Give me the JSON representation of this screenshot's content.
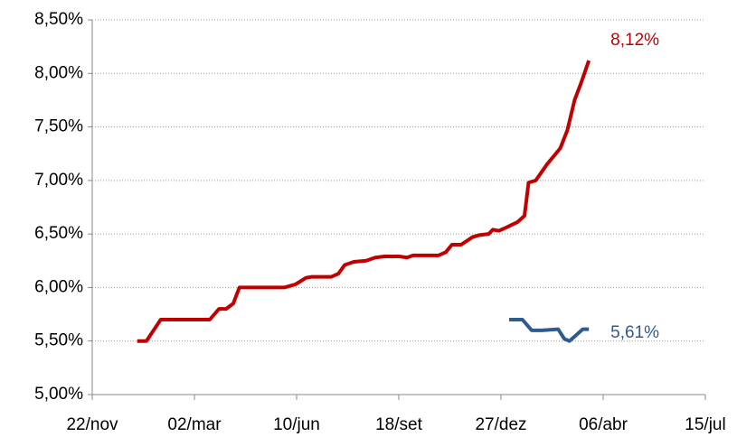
{
  "chart_data": {
    "type": "line",
    "xlim": [
      0,
      600
    ],
    "xticks": [
      {
        "value": 0,
        "label": "22/nov"
      },
      {
        "value": 100,
        "label": "02/mar"
      },
      {
        "value": 200,
        "label": "10/jun"
      },
      {
        "value": 300,
        "label": "18/set"
      },
      {
        "value": 400,
        "label": "27/dez"
      },
      {
        "value": 500,
        "label": "06/abr"
      },
      {
        "value": 600,
        "label": "15/jul"
      }
    ],
    "ylim": [
      5.0,
      8.5
    ],
    "yticks": [
      {
        "value": 5.0,
        "label": "5,00%"
      },
      {
        "value": 5.5,
        "label": "5,50%"
      },
      {
        "value": 6.0,
        "label": "6,00%"
      },
      {
        "value": 6.5,
        "label": "6,50%"
      },
      {
        "value": 7.0,
        "label": "7,00%"
      },
      {
        "value": 7.5,
        "label": "7,50%"
      },
      {
        "value": 8.0,
        "label": "8,00%"
      },
      {
        "value": 8.5,
        "label": "8,50%"
      }
    ],
    "grid": true,
    "series": [
      {
        "color": "#c00000",
        "x": [
          44,
          53,
          67,
          115,
          124,
          131,
          138,
          144,
          188,
          199,
          209,
          215,
          234,
          241,
          247,
          256,
          268,
          277,
          286,
          301,
          308,
          314,
          339,
          346,
          352,
          361,
          372,
          379,
          388,
          392,
          398,
          405,
          416,
          423,
          427,
          434,
          445,
          458,
          465,
          472,
          478,
          486
        ],
        "values": [
          5.5,
          5.5,
          5.7,
          5.7,
          5.8,
          5.8,
          5.85,
          6.0,
          6.0,
          6.03,
          6.09,
          6.1,
          6.1,
          6.13,
          6.21,
          6.24,
          6.25,
          6.28,
          6.29,
          6.29,
          6.28,
          6.3,
          6.3,
          6.33,
          6.4,
          6.4,
          6.47,
          6.49,
          6.5,
          6.54,
          6.53,
          6.56,
          6.61,
          6.67,
          6.98,
          7.0,
          7.15,
          7.3,
          7.47,
          7.75,
          7.9,
          8.12
        ],
        "value_labels": [
          null,
          null,
          null,
          null,
          null,
          null,
          null,
          null,
          null,
          null,
          null,
          null,
          null,
          null,
          null,
          null,
          null,
          null,
          null,
          null,
          null,
          null,
          null,
          null,
          null,
          null,
          null,
          null,
          null,
          null,
          null,
          null,
          null,
          null,
          null,
          null,
          null,
          null,
          null,
          null,
          null,
          "8,12%"
        ]
      },
      {
        "color": "#2e5b8e",
        "x": [
          408,
          421,
          430,
          440,
          456,
          462,
          467,
          473,
          480,
          486
        ],
        "values": [
          5.7,
          5.7,
          5.6,
          5.6,
          5.61,
          5.52,
          5.5,
          5.55,
          5.61,
          5.61
        ],
        "value_labels": [
          null,
          null,
          null,
          null,
          null,
          null,
          null,
          null,
          null,
          "5,61%"
        ]
      }
    ]
  }
}
